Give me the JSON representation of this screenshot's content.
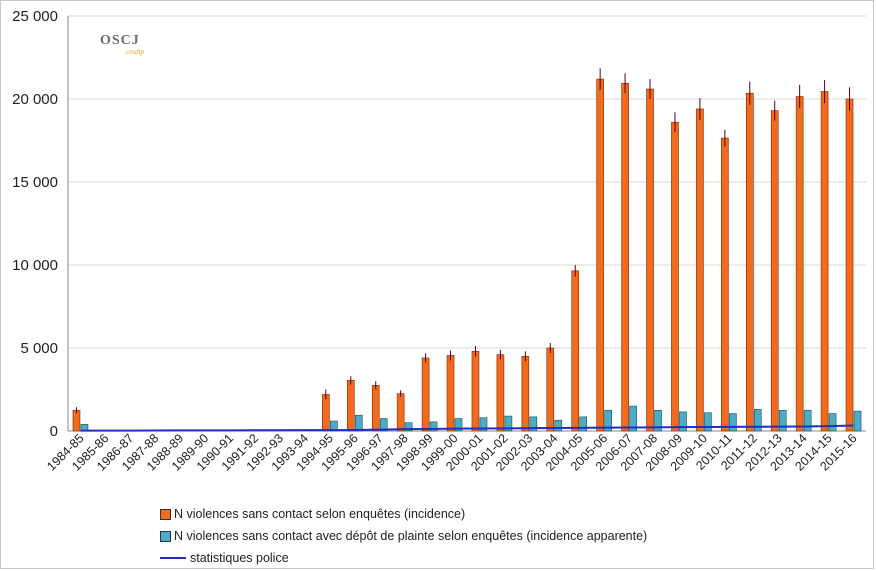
{
  "logo": {
    "text": "OSCJ",
    "subtext": "cesdip"
  },
  "chart_data": {
    "type": "bar",
    "categories": [
      "1984-85",
      "1985-86",
      "1986-87",
      "1987-88",
      "1988-89",
      "1989-90",
      "1990-91",
      "1991-92",
      "1992-93",
      "1993-94",
      "1994-95",
      "1995-96",
      "1996-97",
      "1997-98",
      "1998-99",
      "1999-00",
      "2000-01",
      "2001-02",
      "2002-03",
      "2003-04",
      "2004-05",
      "2005-06",
      "2006-07",
      "2007-08",
      "2008-09",
      "2009-10",
      "2010-11",
      "2011-12",
      "2012-13",
      "2013-14",
      "2014-15",
      "2015-16"
    ],
    "series": [
      {
        "name": "N violences sans contact selon enquêtes (incidence)",
        "kind": "bar",
        "color": "#f26b1d",
        "values": [
          1250,
          null,
          null,
          null,
          null,
          null,
          null,
          null,
          null,
          null,
          2200,
          3050,
          2750,
          2250,
          4400,
          4550,
          4800,
          4600,
          4500,
          5000,
          9650,
          21200,
          20950,
          20600,
          18600,
          19400,
          17650,
          20350,
          19300,
          20150,
          20450,
          20000
        ],
        "error": [
          180,
          null,
          null,
          null,
          null,
          null,
          null,
          null,
          null,
          null,
          300,
          250,
          250,
          200,
          280,
          300,
          320,
          280,
          300,
          300,
          350,
          650,
          600,
          600,
          600,
          650,
          500,
          700,
          600,
          700,
          700,
          700
        ]
      },
      {
        "name": "N violences sans contact avec dépôt de plainte selon enquêtes (incidence apparente)",
        "kind": "bar",
        "color": "#4bacc6",
        "values": [
          400,
          null,
          null,
          null,
          null,
          null,
          null,
          null,
          null,
          null,
          600,
          950,
          750,
          500,
          550,
          750,
          800,
          900,
          850,
          650,
          850,
          1250,
          1500,
          1250,
          1150,
          1100,
          1050,
          1300,
          1250,
          1250,
          1050,
          1200
        ]
      },
      {
        "name": "statistiques police",
        "kind": "line",
        "color": "#1f2fbf",
        "values": [
          20,
          20,
          25,
          30,
          35,
          40,
          40,
          45,
          45,
          50,
          55,
          60,
          80,
          110,
          120,
          140,
          150,
          160,
          170,
          180,
          190,
          200,
          210,
          220,
          230,
          240,
          250,
          255,
          260,
          270,
          290,
          330
        ]
      }
    ],
    "ylim": [
      0,
      25000
    ],
    "yticks": [
      "0",
      "5 000",
      "10 000",
      "15 000",
      "20 000",
      "25 000"
    ],
    "ytick_values": [
      0,
      5000,
      10000,
      15000,
      20000,
      25000
    ],
    "grid": true,
    "legend_position": "bottom"
  }
}
